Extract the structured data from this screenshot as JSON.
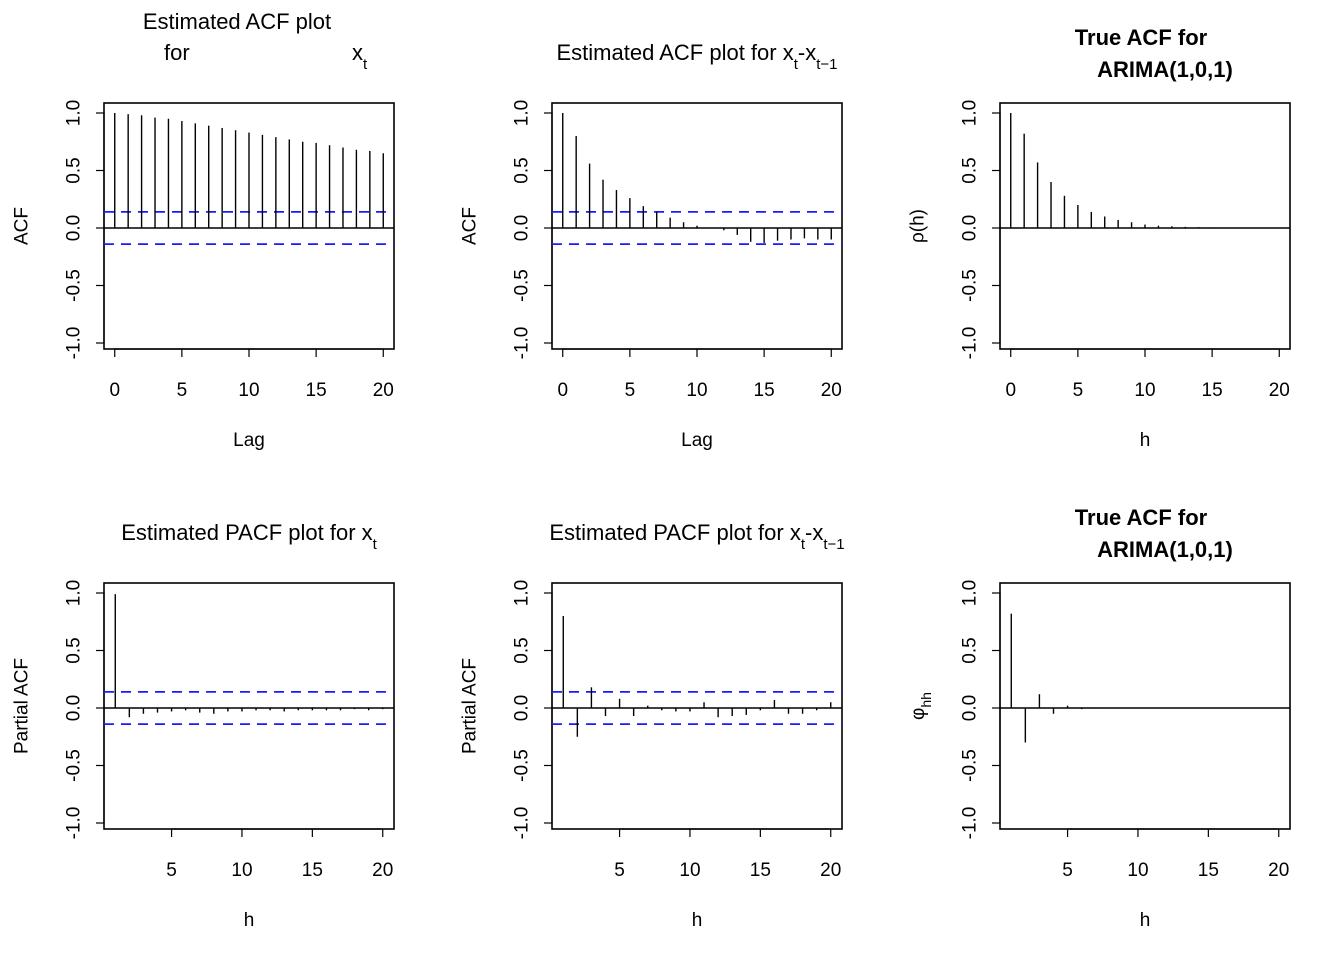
{
  "chart_data": [
    {
      "type": "bar",
      "title_lines": [
        "Estimated ACF plot",
        "for"
      ],
      "title_expr": {
        "base": "x",
        "sub": "t"
      },
      "bold": false,
      "xlabel": "Lag",
      "ylabel": "ACF",
      "xlim": [
        -0.8,
        20.8
      ],
      "ylim": [
        -1,
        1
      ],
      "xticks": [
        0,
        5,
        10,
        15,
        20
      ],
      "yticks": [
        -1.0,
        -0.5,
        0.0,
        0.5,
        1.0
      ],
      "ytick_labels": [
        "-1.0",
        "-0.5",
        "0.0",
        "0.5",
        "1.0"
      ],
      "ci": 0.14,
      "x": [
        0,
        1,
        2,
        3,
        4,
        5,
        6,
        7,
        8,
        9,
        10,
        11,
        12,
        13,
        14,
        15,
        16,
        17,
        18,
        19,
        20
      ],
      "values": [
        1.0,
        0.99,
        0.98,
        0.96,
        0.95,
        0.93,
        0.91,
        0.89,
        0.87,
        0.85,
        0.83,
        0.81,
        0.79,
        0.77,
        0.75,
        0.74,
        0.72,
        0.7,
        0.68,
        0.67,
        0.65
      ]
    },
    {
      "type": "bar",
      "title_lines": [
        "Estimated ACF plot for"
      ],
      "title_expr": {
        "base": "x",
        "sub": "t",
        "minus": {
          "base": "x",
          "sub": "t−1"
        }
      },
      "bold": false,
      "xlabel": "Lag",
      "ylabel": "ACF",
      "xlim": [
        -0.8,
        20.8
      ],
      "ylim": [
        -1,
        1
      ],
      "xticks": [
        0,
        5,
        10,
        15,
        20
      ],
      "yticks": [
        -1.0,
        -0.5,
        0.0,
        0.5,
        1.0
      ],
      "ytick_labels": [
        "-1.0",
        "-0.5",
        "0.0",
        "0.5",
        "1.0"
      ],
      "ci": 0.14,
      "x": [
        0,
        1,
        2,
        3,
        4,
        5,
        6,
        7,
        8,
        9,
        10,
        11,
        12,
        13,
        14,
        15,
        16,
        17,
        18,
        19,
        20
      ],
      "values": [
        1.0,
        0.8,
        0.56,
        0.42,
        0.33,
        0.26,
        0.19,
        0.14,
        0.09,
        0.05,
        0.02,
        0.0,
        -0.02,
        -0.06,
        -0.12,
        -0.13,
        -0.11,
        -0.1,
        -0.09,
        -0.1,
        -0.1
      ]
    },
    {
      "type": "bar",
      "title_lines": [
        "True ACF for",
        "ARIMA(1,0,1)"
      ],
      "bold": true,
      "xlabel": "h",
      "ylabel": "ρ(h)",
      "xlim": [
        -0.8,
        20.8
      ],
      "ylim": [
        -1,
        1
      ],
      "xticks": [
        0,
        5,
        10,
        15,
        20
      ],
      "yticks": [
        -1.0,
        -0.5,
        0.0,
        0.5,
        1.0
      ],
      "ytick_labels": [
        "-1.0",
        "-0.5",
        "0.0",
        "0.5",
        "1.0"
      ],
      "x": [
        0,
        1,
        2,
        3,
        4,
        5,
        6,
        7,
        8,
        9,
        10,
        11,
        12,
        13,
        14,
        15,
        16,
        17,
        18,
        19,
        20
      ],
      "values": [
        1.0,
        0.82,
        0.57,
        0.4,
        0.28,
        0.2,
        0.14,
        0.1,
        0.07,
        0.05,
        0.03,
        0.02,
        0.015,
        0.01,
        0.007,
        0.005,
        0.004,
        0.003,
        0.002,
        0.001,
        0.001
      ]
    },
    {
      "type": "bar",
      "title_lines": [
        "Estimated PACF plot for"
      ],
      "title_expr": {
        "base": "x",
        "sub": "t"
      },
      "bold": false,
      "xlabel": "h",
      "ylabel": "Partial ACF",
      "xlim": [
        0.2,
        20.8
      ],
      "ylim": [
        -1,
        1
      ],
      "xticks": [
        5,
        10,
        15,
        20
      ],
      "yticks": [
        -1.0,
        -0.5,
        0.0,
        0.5,
        1.0
      ],
      "ytick_labels": [
        "-1.0",
        "-0.5",
        "0.0",
        "0.5",
        "1.0"
      ],
      "ci": 0.14,
      "x": [
        1,
        2,
        3,
        4,
        5,
        6,
        7,
        8,
        9,
        10,
        11,
        12,
        13,
        14,
        15,
        16,
        17,
        18,
        19,
        20
      ],
      "values": [
        0.99,
        -0.08,
        -0.05,
        -0.04,
        -0.03,
        -0.02,
        -0.04,
        -0.05,
        -0.03,
        -0.03,
        -0.02,
        -0.02,
        -0.03,
        -0.02,
        -0.02,
        -0.02,
        -0.02,
        -0.01,
        -0.02,
        -0.01
      ]
    },
    {
      "type": "bar",
      "title_lines": [
        "Estimated PACF plot for"
      ],
      "title_expr": {
        "base": "x",
        "sub": "t",
        "minus": {
          "base": "x",
          "sub": "t−1"
        }
      },
      "bold": false,
      "xlabel": "h",
      "ylabel": "Partial ACF",
      "xlim": [
        0.2,
        20.8
      ],
      "ylim": [
        -1,
        1
      ],
      "xticks": [
        5,
        10,
        15,
        20
      ],
      "yticks": [
        -1.0,
        -0.5,
        0.0,
        0.5,
        1.0
      ],
      "ytick_labels": [
        "-1.0",
        "-0.5",
        "0.0",
        "0.5",
        "1.0"
      ],
      "ci": 0.14,
      "x": [
        1,
        2,
        3,
        4,
        5,
        6,
        7,
        8,
        9,
        10,
        11,
        12,
        13,
        14,
        15,
        16,
        17,
        18,
        19,
        20
      ],
      "values": [
        0.8,
        -0.25,
        0.18,
        -0.07,
        0.08,
        -0.07,
        0.02,
        -0.02,
        -0.03,
        -0.03,
        0.05,
        -0.08,
        -0.07,
        -0.06,
        -0.02,
        0.07,
        -0.05,
        -0.05,
        -0.02,
        0.05
      ]
    },
    {
      "type": "bar",
      "title_lines": [
        "True ACF for",
        "ARIMA(1,0,1)"
      ],
      "bold": true,
      "xlabel": "h",
      "ylabel": "φhh",
      "ylabel_expr": {
        "base": "φ",
        "sub": "hh"
      },
      "xlim": [
        0.2,
        20.8
      ],
      "ylim": [
        -1,
        1
      ],
      "xticks": [
        5,
        10,
        15,
        20
      ],
      "yticks": [
        -1.0,
        -0.5,
        0.0,
        0.5,
        1.0
      ],
      "ytick_labels": [
        "-1.0",
        "-0.5",
        "0.0",
        "0.5",
        "1.0"
      ],
      "x": [
        1,
        2,
        3,
        4,
        5,
        6,
        7,
        8,
        9,
        10,
        11,
        12,
        13,
        14,
        15,
        16,
        17,
        18,
        19,
        20
      ],
      "values": [
        0.82,
        -0.3,
        0.12,
        -0.05,
        0.02,
        -0.01,
        0.005,
        -0.002,
        0.001,
        0,
        0,
        0,
        0,
        0,
        0,
        0,
        0,
        0,
        0,
        0
      ]
    }
  ]
}
